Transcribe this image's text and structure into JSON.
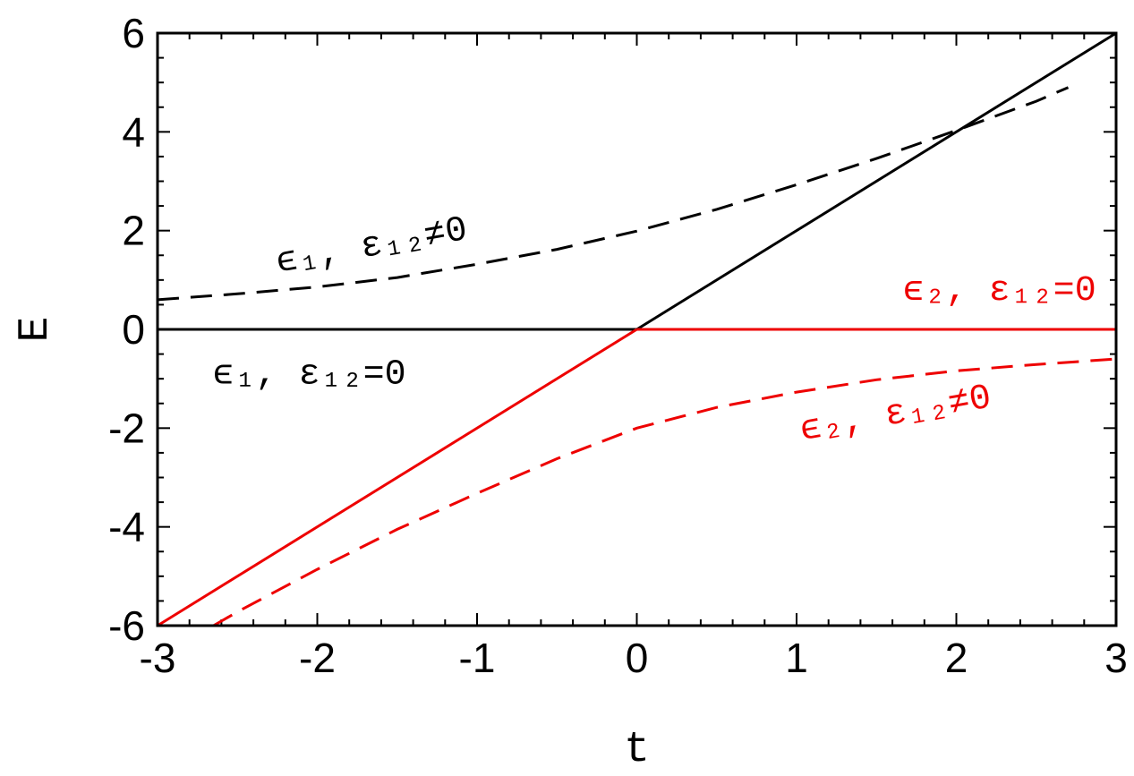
{
  "chart_data": {
    "type": "line",
    "xlabel": "t",
    "ylabel": "E",
    "xlim": [
      -3,
      3
    ],
    "ylim": [
      -6,
      6
    ],
    "x_ticks": [
      -3,
      -2,
      -1,
      0,
      1,
      2,
      3
    ],
    "y_ticks": [
      -6,
      -4,
      -2,
      0,
      2,
      4,
      6
    ],
    "x_tick_labels": [
      "-3",
      "-2",
      "-1",
      "0",
      "1",
      "2",
      "3"
    ],
    "y_tick_labels": [
      "-6",
      "-4",
      "-2",
      "0",
      "2",
      "4",
      "6"
    ],
    "grid": false,
    "colors": {
      "black": "#000000",
      "red": "#ee0000"
    },
    "series": [
      {
        "id": "e1_uncoupled_left",
        "color": "#000000",
        "dash": "solid",
        "x": [
          -3,
          0
        ],
        "y": [
          0,
          0
        ]
      },
      {
        "id": "e1_uncoupled_right",
        "color": "#000000",
        "dash": "solid",
        "x": [
          0,
          3
        ],
        "y": [
          0,
          6
        ]
      },
      {
        "id": "e2_uncoupled_left",
        "color": "#ee0000",
        "dash": "solid",
        "x": [
          -3,
          0
        ],
        "y": [
          -6,
          0
        ]
      },
      {
        "id": "e2_uncoupled_right",
        "color": "#ee0000",
        "dash": "solid",
        "x": [
          0,
          3
        ],
        "y": [
          0,
          0
        ]
      },
      {
        "id": "e1_coupled",
        "color": "#000000",
        "dash": "dashed",
        "x": [
          -3,
          -2.5,
          -2,
          -1.5,
          -1,
          -0.5,
          0,
          0.5,
          1,
          1.5,
          2,
          2.5,
          2.7
        ],
        "y": [
          0.6,
          0.72,
          0.86,
          1.05,
          1.32,
          1.62,
          1.99,
          2.43,
          2.93,
          3.46,
          4.03,
          4.62,
          4.9
        ]
      },
      {
        "id": "e2_coupled",
        "color": "#ee0000",
        "dash": "dashed",
        "x": [
          -2.65,
          -2.5,
          -2,
          -1.5,
          -1,
          -0.5,
          0,
          0.5,
          1,
          1.5,
          2,
          2.5,
          3
        ],
        "y": [
          -6.0,
          -5.72,
          -4.86,
          -4.05,
          -3.32,
          -2.62,
          -2.0,
          -1.58,
          -1.27,
          -1.02,
          -0.84,
          -0.71,
          -0.6
        ]
      }
    ],
    "annotations": [
      {
        "id": "label-e1-coupled",
        "text": "ϵ₁, ε₁₂≠0",
        "color": "#000000",
        "x": -1.65,
        "y": 1.5,
        "rotate": -10
      },
      {
        "id": "label-e1-uncoupled",
        "text": "ϵ₁, ε₁₂=0",
        "color": "#000000",
        "x": -2.05,
        "y": -1.1,
        "rotate": 0
      },
      {
        "id": "label-e2-uncoupled",
        "text": "ϵ₂, ε₁₂=0",
        "color": "#ee0000",
        "x": 2.27,
        "y": 0.6,
        "rotate": 0
      },
      {
        "id": "label-e2-coupled",
        "text": "ϵ₂, ε₁₂≠0",
        "color": "#ee0000",
        "x": 1.63,
        "y": -1.9,
        "rotate": -10
      }
    ]
  }
}
